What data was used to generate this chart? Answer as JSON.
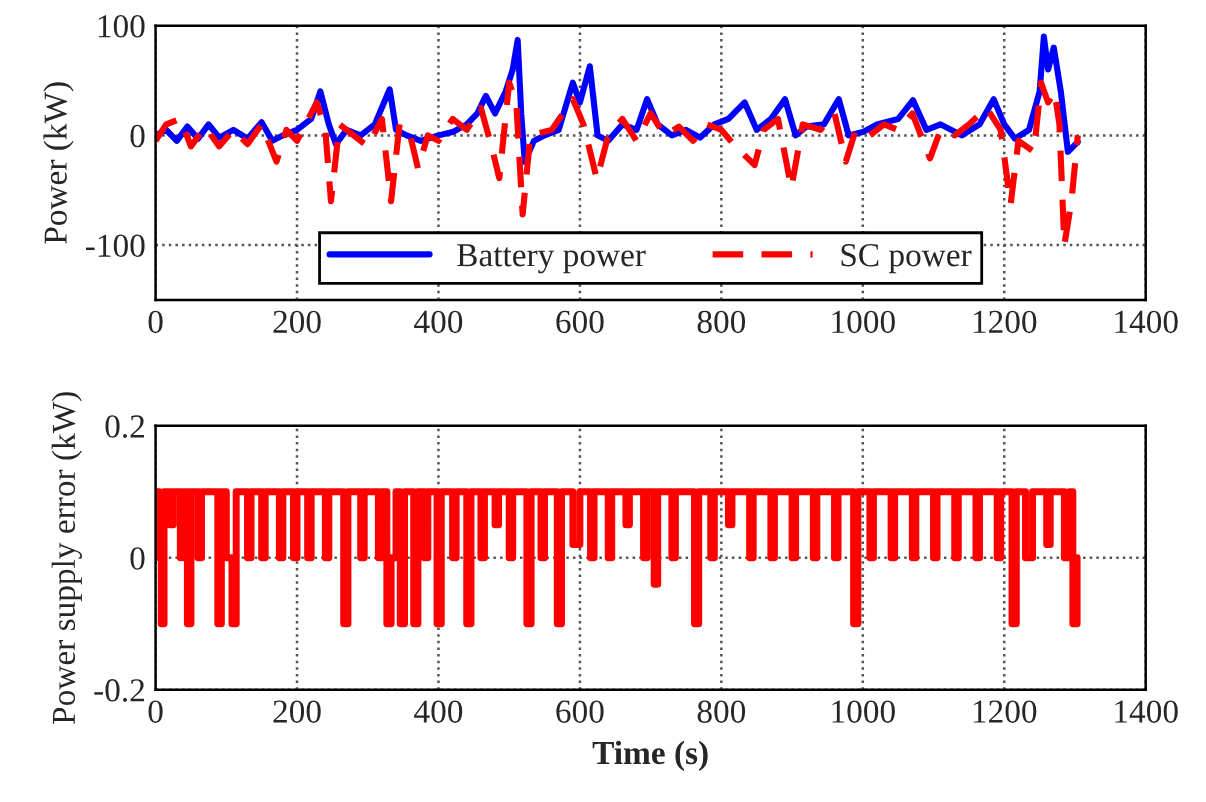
{
  "chart_data": [
    {
      "type": "line",
      "ylabel": "Power (kW)",
      "xlim": [
        0,
        1400
      ],
      "xticks": [
        0,
        200,
        400,
        600,
        800,
        1000,
        1200,
        1400
      ],
      "ylim": [
        -150,
        100
      ],
      "yticks": [
        -100,
        0,
        100
      ],
      "grid": true,
      "legend": "bottom",
      "series": [
        {
          "name": "Battery power",
          "color": "#0000ff",
          "line_style": "solid",
          "x": [
            0,
            15,
            30,
            45,
            60,
            75,
            90,
            110,
            130,
            150,
            165,
            180,
            200,
            220,
            233,
            245,
            255,
            270,
            290,
            310,
            331,
            340,
            355,
            375,
            400,
            420,
            440,
            455,
            467,
            480,
            495,
            505,
            512,
            517,
            522,
            535,
            550,
            570,
            590,
            600,
            614,
            625,
            640,
            660,
            680,
            695,
            710,
            730,
            750,
            770,
            790,
            810,
            833,
            850,
            870,
            890,
            905,
            920,
            945,
            966,
            980,
            1000,
            1020,
            1050,
            1071,
            1090,
            1110,
            1140,
            1165,
            1185,
            1200,
            1215,
            1235,
            1250,
            1256,
            1262,
            1270,
            1280,
            1290,
            1304
          ],
          "values": [
            0,
            5,
            -5,
            8,
            -3,
            10,
            -2,
            5,
            -3,
            12,
            -5,
            0,
            5,
            15,
            40,
            10,
            -8,
            5,
            0,
            10,
            42,
            5,
            0,
            -5,
            0,
            3,
            10,
            20,
            36,
            20,
            40,
            60,
            87,
            20,
            -24,
            -5,
            0,
            5,
            48,
            30,
            63,
            0,
            -5,
            10,
            5,
            33,
            10,
            0,
            5,
            -2,
            10,
            15,
            30,
            5,
            15,
            33,
            0,
            8,
            10,
            33,
            0,
            3,
            10,
            15,
            32,
            5,
            10,
            0,
            10,
            33,
            10,
            -3,
            5,
            40,
            90,
            60,
            80,
            40,
            -15,
            -6
          ]
        },
        {
          "name": "SC power",
          "color": "#ff0000",
          "line_style": "dashed",
          "x": [
            0,
            15,
            35,
            50,
            70,
            90,
            110,
            130,
            150,
            171,
            185,
            200,
            228,
            240,
            248,
            260,
            280,
            300,
            320,
            333,
            345,
            360,
            371,
            385,
            400,
            420,
            440,
            460,
            475,
            486,
            500,
            510,
            519,
            530,
            560,
            590,
            605,
            624,
            640,
            660,
            680,
            700,
            720,
            740,
            760,
            780,
            800,
            820,
            847,
            860,
            880,
            899,
            915,
            940,
            960,
            976,
            990,
            1010,
            1030,
            1050,
            1070,
            1095,
            1110,
            1130,
            1150,
            1175,
            1195,
            1209,
            1220,
            1242,
            1252,
            1262,
            1271,
            1278,
            1285,
            1295,
            1304
          ],
          "values": [
            -5,
            10,
            15,
            -10,
            8,
            -10,
            5,
            -8,
            10,
            -24,
            5,
            -5,
            30,
            5,
            -60,
            10,
            0,
            -10,
            15,
            -60,
            10,
            0,
            -30,
            0,
            -5,
            15,
            5,
            25,
            -10,
            -39,
            48,
            30,
            -72,
            0,
            5,
            33,
            10,
            -40,
            0,
            15,
            -5,
            20,
            0,
            8,
            -5,
            10,
            5,
            -10,
            -27,
            5,
            15,
            -48,
            10,
            5,
            20,
            -24,
            5,
            0,
            10,
            5,
            20,
            -21,
            5,
            0,
            10,
            25,
            5,
            -63,
            -5,
            -15,
            48,
            30,
            40,
            10,
            -100,
            -60,
            0
          ]
        }
      ]
    },
    {
      "type": "step",
      "ylabel": "Power supply error (kW)",
      "xlabel": "Time (s)",
      "xlim": [
        0,
        1400
      ],
      "xticks": [
        0,
        200,
        400,
        600,
        800,
        1000,
        1200,
        1400
      ],
      "ylim": [
        -0.2,
        0.2
      ],
      "yticks": [
        -0.2,
        0,
        0.2
      ],
      "grid": true,
      "series": [
        {
          "color": "#ff0000",
          "line_style": "solid",
          "x": [
            0,
            5,
            8,
            12,
            20,
            25,
            35,
            40,
            45,
            50,
            60,
            65,
            80,
            88,
            93,
            100,
            108,
            114,
            130,
            135,
            150,
            155,
            175,
            180,
            195,
            200,
            215,
            220,
            240,
            245,
            266,
            272,
            290,
            295,
            315,
            320,
            327,
            333,
            340,
            346,
            352,
            365,
            371,
            380,
            385,
            398,
            404,
            420,
            425,
            440,
            446,
            460,
            465,
            480,
            485,
            500,
            505,
            525,
            531,
            545,
            550,
            568,
            574,
            590,
            600,
            615,
            620,
            640,
            645,
            665,
            670,
            690,
            695,
            705,
            710,
            730,
            735,
            762,
            768,
            785,
            790,
            810,
            815,
            840,
            845,
            870,
            875,
            900,
            905,
            930,
            935,
            960,
            965,
            987,
            993,
            1010,
            1015,
            1040,
            1045,
            1070,
            1075,
            1100,
            1105,
            1130,
            1135,
            1160,
            1165,
            1190,
            1195,
            1211,
            1217,
            1230,
            1240,
            1260,
            1265,
            1285,
            1292,
            1297,
            1303
          ],
          "values": [
            0.1,
            0,
            -0.1,
            0.1,
            0.05,
            0.1,
            0,
            0.1,
            -0.1,
            0.1,
            0,
            0.1,
            0.1,
            -0.1,
            0.1,
            0,
            -0.1,
            0.1,
            0,
            0.1,
            0,
            0.1,
            0,
            0.1,
            0,
            0.1,
            0,
            0.1,
            0,
            0.1,
            -0.1,
            0.1,
            0,
            0.1,
            0,
            0.1,
            -0.1,
            0,
            0.1,
            -0.1,
            0.1,
            -0.1,
            0.1,
            0,
            0.1,
            -0.1,
            0.1,
            0,
            0.1,
            -0.1,
            0.1,
            0,
            0.1,
            0.05,
            0.1,
            0,
            0.1,
            -0.1,
            0.1,
            0,
            0.1,
            -0.1,
            0.1,
            0.02,
            0.1,
            0,
            0.1,
            0,
            0.1,
            0.05,
            0.1,
            0,
            0.1,
            -0.04,
            0.1,
            0,
            0.1,
            -0.1,
            0.1,
            0,
            0.1,
            0.05,
            0.1,
            0,
            0.1,
            0,
            0.1,
            0,
            0.1,
            0,
            0.1,
            0,
            0.1,
            -0.1,
            0.1,
            0,
            0.1,
            0,
            0.1,
            0,
            0.1,
            0,
            0.1,
            0,
            0.1,
            0,
            0.1,
            0,
            0.1,
            -0.1,
            0.1,
            0,
            0.1,
            0.02,
            0.1,
            0,
            0.1,
            -0.1,
            0
          ]
        }
      ]
    }
  ]
}
